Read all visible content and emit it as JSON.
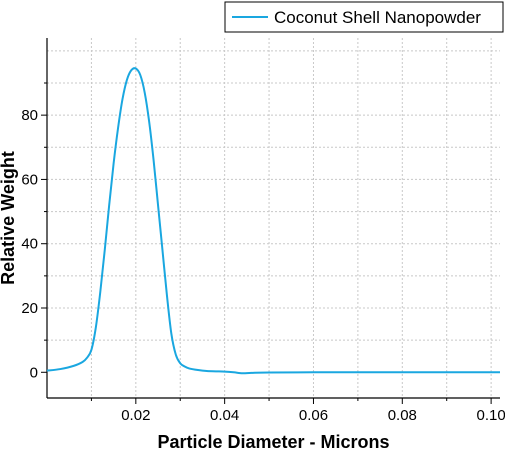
{
  "chart_data": {
    "type": "line",
    "title": "",
    "xlabel": "Particle Diameter - Microns",
    "ylabel": "Relative Weight",
    "xlim": [
      0.0,
      0.102
    ],
    "ylim": [
      -8,
      104
    ],
    "x_ticks": [
      0.02,
      0.04,
      0.06,
      0.08,
      0.1
    ],
    "x_tick_labels": [
      "0.02",
      "0.04",
      "0.06",
      "0.08",
      "0.10"
    ],
    "y_ticks": [
      0,
      20,
      40,
      60,
      80
    ],
    "y_tick_labels": [
      "0",
      "20",
      "40",
      "60",
      "80"
    ],
    "grid": true,
    "legend_position": "top-right",
    "colors": {
      "series": "#1aa7e0",
      "grid": "#c8c8c8",
      "axis": "#000000"
    },
    "series": [
      {
        "name": "Coconut Shell Nanopowder",
        "x": [
          0.0,
          0.003,
          0.006,
          0.008,
          0.009,
          0.01,
          0.011,
          0.012,
          0.013,
          0.014,
          0.015,
          0.016,
          0.017,
          0.018,
          0.019,
          0.02,
          0.021,
          0.022,
          0.023,
          0.024,
          0.025,
          0.026,
          0.027,
          0.028,
          0.029,
          0.03,
          0.031,
          0.032,
          0.034,
          0.036,
          0.038,
          0.04,
          0.042,
          0.044,
          0.046,
          0.05,
          0.06,
          0.07,
          0.08,
          0.09,
          0.102
        ],
        "y": [
          0.5,
          1.0,
          2.0,
          3.2,
          4.5,
          7.0,
          14.0,
          25.0,
          38.0,
          52.0,
          65.0,
          76.0,
          85.0,
          91.0,
          94.0,
          94.5,
          92.5,
          87.0,
          78.0,
          66.0,
          52.0,
          38.0,
          24.0,
          12.0,
          5.5,
          2.8,
          1.8,
          1.2,
          0.7,
          0.4,
          0.3,
          0.2,
          0.0,
          -0.3,
          -0.2,
          -0.05,
          0.0,
          0.0,
          0.0,
          0.0,
          0.0
        ]
      }
    ]
  }
}
